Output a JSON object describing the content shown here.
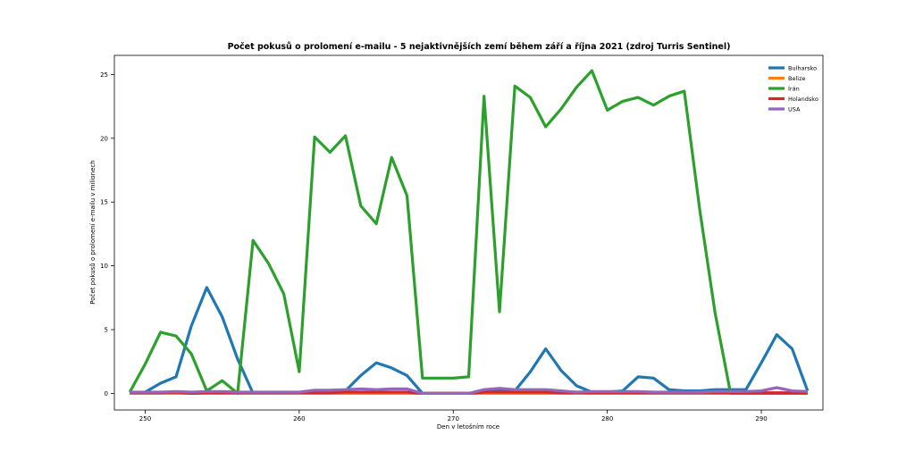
{
  "chart_data": {
    "type": "line",
    "title": "Počet pokusů o prolomení e-mailu - 5 nejaktivnějších zemí během září a října 2021 (zdroj Turris Sentinel)",
    "xlabel": "Den v letošním roce",
    "ylabel": "Počet pokusů o prolomení e-mailu v milionech",
    "xlim": [
      248,
      294
    ],
    "ylim": [
      -1.3,
      26.5
    ],
    "xticks": [
      250,
      260,
      270,
      280,
      290
    ],
    "yticks": [
      0,
      5,
      10,
      15,
      20,
      25
    ],
    "grid": false,
    "legend_position": "top-right",
    "x": [
      249,
      250,
      251,
      252,
      253,
      254,
      255,
      256,
      257,
      258,
      259,
      260,
      261,
      262,
      263,
      264,
      265,
      266,
      267,
      268,
      269,
      270,
      271,
      272,
      273,
      274,
      275,
      276,
      277,
      278,
      279,
      280,
      281,
      282,
      283,
      284,
      285,
      286,
      287,
      288,
      289,
      290,
      291,
      292,
      293
    ],
    "series": [
      {
        "name": "Bulharsko",
        "color": "#1f77b4",
        "values": [
          0,
          0.1,
          0.8,
          1.3,
          5.3,
          8.3,
          6.0,
          2.7,
          0,
          0,
          0,
          0,
          0.1,
          0.1,
          0.2,
          1.4,
          2.4,
          2.0,
          1.4,
          0,
          0,
          0,
          0,
          0.1,
          0.2,
          0.2,
          1.7,
          3.5,
          1.8,
          0.6,
          0.1,
          0.1,
          0.2,
          1.3,
          1.2,
          0.3,
          0.2,
          0.2,
          0.3,
          0.3,
          0.3,
          2.4,
          4.6,
          3.5,
          0.2
        ]
      },
      {
        "name": "Belize",
        "color": "#ff7f0e",
        "values": [
          0,
          0,
          0,
          0,
          0,
          0,
          0,
          0,
          0,
          0,
          0,
          0,
          0,
          0,
          0,
          0,
          0,
          0,
          0,
          0,
          0,
          0,
          0,
          0,
          0,
          0,
          0,
          0,
          0,
          0,
          0,
          0,
          0,
          0,
          0,
          0,
          0,
          0,
          0,
          0,
          0,
          0,
          0,
          0,
          0
        ]
      },
      {
        "name": "Írán",
        "color": "#2ca02c",
        "values": [
          0.1,
          2.3,
          4.8,
          4.5,
          3.1,
          0.2,
          1.0,
          0,
          12.0,
          10.2,
          7.8,
          1.7,
          20.1,
          18.9,
          20.2,
          14.7,
          13.3,
          18.5,
          15.5,
          1.2,
          1.2,
          1.2,
          1.3,
          23.3,
          6.4,
          24.1,
          23.2,
          20.9,
          22.3,
          24.0,
          25.3,
          22.2,
          22.9,
          23.2,
          22.6,
          23.3,
          23.7,
          14.4,
          6.3,
          0,
          0,
          0,
          0,
          0,
          0
        ]
      },
      {
        "name": "Holandsko",
        "color": "#d62728",
        "values": [
          0.05,
          0.05,
          0.05,
          0.1,
          0,
          0.05,
          0.05,
          0.05,
          0.05,
          0.05,
          0.05,
          0.05,
          0.05,
          0.05,
          0.1,
          0.1,
          0.1,
          0.1,
          0.1,
          0,
          0,
          0,
          0,
          0.1,
          0.1,
          0.1,
          0.1,
          0.1,
          0.05,
          0.05,
          0.05,
          0.05,
          0.05,
          0.05,
          0.05,
          0.05,
          0.05,
          0.05,
          0.05,
          0.05,
          0.05,
          0.05,
          0.05,
          0.05,
          0.05
        ]
      },
      {
        "name": "USA",
        "color": "#9467bd",
        "values": [
          0.1,
          0.1,
          0.1,
          0.15,
          0.1,
          0.15,
          0.15,
          0.1,
          0.1,
          0.1,
          0.1,
          0.1,
          0.25,
          0.25,
          0.3,
          0.35,
          0.3,
          0.35,
          0.35,
          0,
          0,
          0,
          0,
          0.3,
          0.4,
          0.3,
          0.3,
          0.3,
          0.2,
          0.1,
          0.15,
          0.15,
          0.15,
          0.15,
          0.1,
          0.1,
          0.1,
          0.1,
          0.15,
          0.15,
          0.15,
          0.2,
          0.45,
          0.2,
          0.15
        ]
      }
    ]
  }
}
